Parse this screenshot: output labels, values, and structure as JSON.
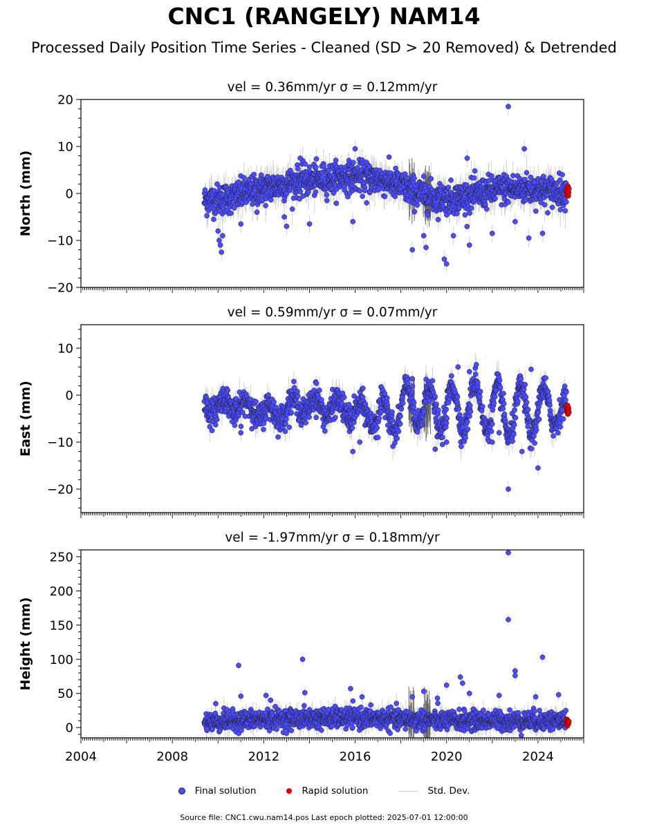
{
  "figure": {
    "title": "CNC1 (RANGELY) NAM14",
    "subtitle": "Processed Daily Position Time Series - Cleaned (SD > 20 Removed) & Detrended",
    "footer": "Source file: CNC1.cwu.nam14.pos  Last epoch plotted: 2025-07-01 12:00:00"
  },
  "legend": {
    "final_label": "Final solution",
    "rapid_label": "Rapid solution",
    "std_label": "Std. Dev.",
    "final_color": "#4b4bff",
    "rapid_color": "#e00000",
    "std_color": "#cccccc"
  },
  "chart_data": [
    {
      "type": "scatter",
      "id": "north",
      "title": "vel = 0.36mm/yr   σ = 0.12mm/yr",
      "ylabel": "North (mm)",
      "xlabel": "",
      "xlim": [
        2004,
        2026
      ],
      "ylim": [
        -20,
        20
      ],
      "yticks": [
        -20,
        -10,
        0,
        10,
        20
      ],
      "ytick_labels": [
        "−20",
        "−10",
        "0",
        "10",
        "20"
      ],
      "xticks": [
        2004,
        2008,
        2012,
        2016,
        2020,
        2024
      ],
      "xtick_labels": [],
      "grid": false,
      "data_start": 2009.4,
      "data_end": 2025.5,
      "rapid_start": 2025.25,
      "trend": [
        [
          2009.4,
          -1.5
        ],
        [
          2010.5,
          -1.0
        ],
        [
          2011.5,
          0.5
        ],
        [
          2012.5,
          1.5
        ],
        [
          2013.5,
          2.5
        ],
        [
          2014.5,
          3.0
        ],
        [
          2015.5,
          3.5
        ],
        [
          2016.5,
          3.5
        ],
        [
          2017.5,
          2.5
        ],
        [
          2018.5,
          0.5
        ],
        [
          2019.5,
          -1.0
        ],
        [
          2020.5,
          -1.0
        ],
        [
          2021.5,
          0.0
        ],
        [
          2022.5,
          1.0
        ],
        [
          2023.5,
          1.0
        ],
        [
          2024.5,
          0.5
        ],
        [
          2025.5,
          0.5
        ]
      ],
      "noise": 1.6,
      "outliers": [
        [
          2010.0,
          -8
        ],
        [
          2010.05,
          -10
        ],
        [
          2010.1,
          -11
        ],
        [
          2010.15,
          -12.5
        ],
        [
          2010.2,
          -9
        ],
        [
          2011.0,
          -6.5
        ],
        [
          2011.7,
          -4
        ],
        [
          2012.9,
          -5
        ],
        [
          2013.0,
          -7
        ],
        [
          2013.6,
          7.5
        ],
        [
          2014.0,
          -6.5
        ],
        [
          2015.9,
          -6
        ],
        [
          2016.0,
          9.5
        ],
        [
          2016.5,
          -2
        ],
        [
          2018.5,
          -12
        ],
        [
          2019.0,
          -9
        ],
        [
          2019.1,
          -11.5
        ],
        [
          2019.9,
          -14
        ],
        [
          2020.0,
          -15
        ],
        [
          2020.3,
          -9
        ],
        [
          2020.9,
          7.5
        ],
        [
          2021.0,
          -11
        ],
        [
          2022.0,
          -8.5
        ],
        [
          2022.7,
          18.5
        ],
        [
          2023.0,
          -6
        ],
        [
          2023.4,
          9.5
        ],
        [
          2023.6,
          -9.5
        ],
        [
          2024.2,
          -8.5
        ]
      ],
      "rapid_values": [
        0.5,
        -0.3,
        1.2,
        0.8,
        1.5,
        -0.5,
        0.2,
        1.0
      ]
    },
    {
      "type": "scatter",
      "id": "east",
      "title": "vel = 0.59mm/yr   σ = 0.07mm/yr",
      "ylabel": "East (mm)",
      "xlabel": "",
      "xlim": [
        2004,
        2026
      ],
      "ylim": [
        -25,
        15
      ],
      "yticks": [
        -20,
        -10,
        0,
        10
      ],
      "ytick_labels": [
        "−20",
        "−10",
        "0",
        "10"
      ],
      "xticks": [
        2004,
        2008,
        2012,
        2016,
        2020,
        2024
      ],
      "xtick_labels": [],
      "grid": false,
      "data_start": 2009.4,
      "data_end": 2025.5,
      "rapid_start": 2025.25,
      "trend": [
        [
          2009.4,
          -2.5
        ],
        [
          2010.5,
          -2.0
        ],
        [
          2011.5,
          -3.0
        ],
        [
          2012.5,
          -4.0
        ],
        [
          2013.5,
          -2.0
        ],
        [
          2014.5,
          -2.5
        ],
        [
          2015.5,
          -3.0
        ],
        [
          2016.5,
          -4.0
        ],
        [
          2017.5,
          -4.5
        ],
        [
          2018.5,
          -2.0
        ],
        [
          2019.5,
          -3.0
        ],
        [
          2020.5,
          -3.0
        ],
        [
          2021.5,
          -2.0
        ],
        [
          2022.5,
          -4.0
        ],
        [
          2023.5,
          -3.5
        ],
        [
          2024.5,
          -3.0
        ],
        [
          2025.5,
          -3.0
        ]
      ],
      "seasonal": [
        [
          2009.4,
          1.5
        ],
        [
          2016.5,
          2.0
        ],
        [
          2018.0,
          4.5
        ],
        [
          2024.0,
          5.5
        ],
        [
          2025.5,
          1.0
        ]
      ],
      "noise": 1.4,
      "outliers": [
        [
          2011.0,
          -8
        ],
        [
          2012.0,
          -6
        ],
        [
          2014.3,
          2.5
        ],
        [
          2015.9,
          -12
        ],
        [
          2016.2,
          -10
        ],
        [
          2017.0,
          -9
        ],
        [
          2018.5,
          3.5
        ],
        [
          2019.5,
          -11.5
        ],
        [
          2020.0,
          -10
        ],
        [
          2020.5,
          6.0
        ],
        [
          2021.0,
          5.0
        ],
        [
          2021.3,
          6.5
        ],
        [
          2022.0,
          -10
        ],
        [
          2022.3,
          -8
        ],
        [
          2022.7,
          -20
        ],
        [
          2023.3,
          -12
        ],
        [
          2023.7,
          5.5
        ],
        [
          2024.0,
          -15.5
        ]
      ],
      "rapid_values": [
        -2.5,
        -3.5,
        -3.0,
        -2.2,
        -4.0,
        -3.2,
        -2.8,
        -3.6
      ]
    },
    {
      "type": "scatter",
      "id": "height",
      "title": "vel = -1.97mm/yr   σ = 0.18mm/yr",
      "ylabel": "Height (mm)",
      "xlabel": "",
      "xlim": [
        2004,
        2026
      ],
      "ylim": [
        -15,
        260
      ],
      "yticks": [
        0,
        50,
        100,
        150,
        200,
        250
      ],
      "ytick_labels": [
        "0",
        "50",
        "100",
        "150",
        "200",
        "250"
      ],
      "xticks": [
        2004,
        2008,
        2012,
        2016,
        2020,
        2024
      ],
      "xtick_labels": [
        "2004",
        "2008",
        "2012",
        "2016",
        "2020",
        "2024"
      ],
      "grid": false,
      "data_start": 2009.4,
      "data_end": 2025.5,
      "rapid_start": 2025.25,
      "trend": [
        [
          2009.4,
          8
        ],
        [
          2012.0,
          12
        ],
        [
          2016.0,
          14
        ],
        [
          2020.0,
          10
        ],
        [
          2025.5,
          10
        ]
      ],
      "noise": 7,
      "outliers": [
        [
          2009.9,
          35
        ],
        [
          2010.9,
          91
        ],
        [
          2011.0,
          46
        ],
        [
          2012.1,
          47
        ],
        [
          2012.3,
          40
        ],
        [
          2013.7,
          100
        ],
        [
          2013.8,
          51
        ],
        [
          2015.8,
          57
        ],
        [
          2016.3,
          45
        ],
        [
          2018.5,
          45
        ],
        [
          2019.0,
          53
        ],
        [
          2019.6,
          43
        ],
        [
          2020.0,
          62
        ],
        [
          2020.6,
          74
        ],
        [
          2020.7,
          65
        ],
        [
          2021.0,
          50
        ],
        [
          2022.3,
          47
        ],
        [
          2022.7,
          256
        ],
        [
          2022.7,
          158
        ],
        [
          2023.0,
          83
        ],
        [
          2023.0,
          76
        ],
        [
          2023.9,
          45
        ],
        [
          2024.2,
          103
        ],
        [
          2024.9,
          48
        ]
      ],
      "rapid_values": [
        5,
        12,
        8,
        3,
        10,
        7,
        6,
        9
      ]
    }
  ]
}
